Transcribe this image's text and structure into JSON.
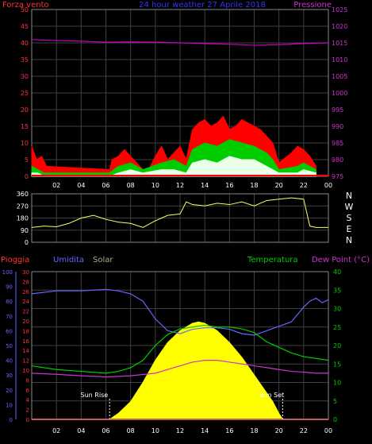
{
  "chart_data": [
    {
      "type": "area",
      "panel": "wind-pressure",
      "title": "24 hour weather   27 Aprile 2018",
      "left_axis_label": "Forza vento",
      "right_axis_label": "Pressione",
      "left_ylim": [
        0,
        50
      ],
      "left_ticks": [
        "0",
        "5",
        "10",
        "15",
        "20",
        "25",
        "30",
        "35",
        "40",
        "45",
        "50"
      ],
      "right_ylim": [
        975,
        1025
      ],
      "right_ticks": [
        "975",
        "980",
        "985",
        "990",
        "995",
        "1000",
        "1005",
        "1010",
        "1015",
        "1020",
        "1025"
      ],
      "x_ticks": [
        "02",
        "04",
        "06",
        "08",
        "10",
        "12",
        "14",
        "16",
        "18",
        "20",
        "22",
        "00"
      ],
      "grid": true,
      "colors": {
        "gust": "#ff0000",
        "wind_avg": "#00cc00",
        "wind_min": "#e8ffe8",
        "pressure": "#cc00cc"
      },
      "series": [
        {
          "name": "Pressione",
          "x": [
            0,
            2,
            4,
            6,
            8,
            10,
            12,
            14,
            16,
            18,
            20,
            22,
            24
          ],
          "values": [
            1016,
            1015.7,
            1015.5,
            1015.2,
            1015.3,
            1015.2,
            1015.0,
            1014.8,
            1014.6,
            1014.3,
            1014.5,
            1014.8,
            1015.0
          ]
        },
        {
          "x": [
            0,
            0.4,
            0.8,
            1.2,
            6.3,
            6.5,
            7.0,
            7.5,
            8.0,
            8.5,
            9.0,
            9.3,
            9.6,
            10.0,
            10.5,
            11.0,
            11.5,
            12.0,
            12.5,
            13.0,
            13.5,
            14.0,
            14.5,
            15.0,
            15.5,
            16.0,
            16.5,
            17.0,
            17.5,
            18.0,
            18.5,
            19.0,
            19.5,
            20.0,
            21.0,
            21.5,
            22.0,
            22.5,
            23.0
          ],
          "values": [
            9,
            5,
            6,
            3,
            2,
            5,
            6,
            8,
            6,
            4,
            2,
            1,
            3,
            6,
            9,
            5,
            7,
            9,
            5,
            14,
            16,
            17,
            15,
            16,
            18,
            14,
            15,
            17,
            16,
            15,
            14,
            12,
            10,
            4,
            7,
            9,
            8,
            6,
            3
          ]
        },
        {
          "x": [
            0,
            0.5,
            1.0,
            6.3,
            7.0,
            8.0,
            9.0,
            10.5,
            11.5,
            12.5,
            13.0,
            14.0,
            15.0,
            16.0,
            17.0,
            18.0,
            19.0,
            19.5,
            20.0,
            21.5,
            22.0,
            23.0
          ],
          "values": [
            3,
            2,
            1,
            1,
            3,
            4,
            2,
            4,
            5,
            3,
            8,
            10,
            9,
            11,
            10,
            9,
            7,
            5,
            2,
            3,
            4,
            2
          ]
        },
        {
          "x": [
            0,
            0.5,
            1.0,
            6.3,
            7.0,
            8.0,
            9.0,
            10.5,
            11.5,
            12.5,
            13.0,
            14.0,
            15.0,
            16.0,
            17.0,
            18.0,
            19.0,
            19.5,
            20.0,
            21.5,
            22.0,
            23.0
          ],
          "values": [
            1,
            1,
            0,
            0,
            1,
            2,
            1,
            2,
            2,
            1,
            4,
            5,
            4,
            6,
            5,
            5,
            3,
            2,
            1,
            1,
            2,
            1
          ]
        }
      ]
    },
    {
      "type": "line",
      "panel": "wind-direction",
      "ylim": [
        0,
        360
      ],
      "y_ticks": [
        "0",
        "90",
        "180",
        "270",
        "360"
      ],
      "right_labels": [
        "N",
        "W",
        "S",
        "E",
        "N"
      ],
      "grid": true,
      "colors": {
        "direction": "#ffff66"
      },
      "series": [
        {
          "x": [
            0,
            1,
            2,
            3,
            4,
            5,
            6,
            7,
            8,
            9,
            10,
            11,
            12,
            12.5,
            13,
            14,
            15,
            16,
            17,
            18,
            19,
            20,
            21,
            22,
            22.5,
            23,
            24
          ],
          "values": [
            110,
            120,
            115,
            140,
            180,
            200,
            170,
            150,
            140,
            110,
            160,
            200,
            210,
            300,
            280,
            270,
            290,
            280,
            300,
            270,
            310,
            320,
            330,
            320,
            120,
            110,
            110
          ]
        }
      ]
    },
    {
      "type": "area",
      "panel": "humidity-temperature-solar",
      "labels": {
        "rain": "Pioggia",
        "humidity": "Umidita",
        "solar": "Solar",
        "temperature": "Temperatura",
        "dew_point": "Dew Point (°C)"
      },
      "left_axis_humidity_ylim": [
        0,
        100
      ],
      "left_axis_humidity_ticks": [
        "0",
        "10",
        "20",
        "30",
        "40",
        "50",
        "60",
        "70",
        "80",
        "90",
        "100"
      ],
      "left_axis_rain_ylim": [
        0,
        30
      ],
      "left_axis_rain_ticks": [
        "0",
        "2",
        "4",
        "6",
        "8",
        "10",
        "12",
        "14",
        "16",
        "18",
        "20",
        "22",
        "24",
        "26",
        "28",
        "30"
      ],
      "right_axis_temperature_ylim": [
        0,
        40
      ],
      "right_axis_temperature_ticks": [
        "0",
        "5",
        "10",
        "15",
        "20",
        "25",
        "30",
        "35",
        "40"
      ],
      "x_ticks": [
        "02",
        "04",
        "06",
        "08",
        "10",
        "12",
        "14",
        "16",
        "18",
        "20",
        "22",
        "00"
      ],
      "annotations": [
        "Sun Rise",
        "Sun Set"
      ],
      "sun_rise_x": 6.3,
      "sun_set_x": 20.3,
      "grid": true,
      "colors": {
        "rain": "#ff3333",
        "humidity": "#6666ff",
        "solar": "#ffff00",
        "temperature": "#00cc00",
        "dew_point": "#cc33cc"
      },
      "series": [
        {
          "name": "Umidita",
          "x": [
            0,
            2,
            4,
            6,
            7,
            8,
            9,
            10,
            11,
            12,
            13,
            14,
            15,
            16,
            17,
            18,
            19,
            20,
            21,
            22,
            22.5,
            23,
            23.5,
            24
          ],
          "values": [
            85,
            87,
            87,
            88,
            87,
            85,
            80,
            68,
            60,
            58,
            61,
            62,
            62,
            61,
            58,
            57,
            60,
            63,
            66,
            76,
            80,
            82,
            79,
            81
          ]
        },
        {
          "name": "Temperatura",
          "x": [
            0,
            2,
            4,
            6,
            7,
            8,
            9,
            10,
            11,
            12,
            13,
            14,
            15,
            16,
            17,
            18,
            19,
            20,
            21,
            22,
            23,
            24
          ],
          "values": [
            14.5,
            13.5,
            13,
            12.5,
            13,
            14,
            16,
            20,
            23,
            24.5,
            25,
            25.5,
            25,
            25,
            24.5,
            23.5,
            21,
            19.5,
            18,
            17,
            16.5,
            16
          ]
        },
        {
          "name": "Dew Point",
          "x": [
            0,
            2,
            4,
            6,
            8,
            10,
            11,
            12,
            13,
            14,
            15,
            16,
            17,
            18,
            19,
            20,
            21,
            22,
            23,
            24
          ],
          "values": [
            12.5,
            12.2,
            11.8,
            11.5,
            11.8,
            12.5,
            13.5,
            14.5,
            15.5,
            16,
            16,
            15.5,
            15,
            14.5,
            14,
            13.5,
            13,
            12.8,
            12.5,
            12.5
          ]
        },
        {
          "name": "Solar",
          "x": [
            6.3,
            7,
            8,
            9,
            10,
            11,
            12,
            13,
            13.5,
            14,
            15,
            16,
            17,
            18,
            19,
            19.5,
            20,
            20.3
          ],
          "values": [
            0,
            4,
            12,
            25,
            40,
            52,
            60,
            65,
            66,
            65,
            60,
            52,
            42,
            30,
            18,
            12,
            4,
            0
          ]
        },
        {
          "name": "Pioggia",
          "x": [
            0,
            24
          ],
          "values": [
            0,
            0
          ]
        }
      ]
    }
  ]
}
